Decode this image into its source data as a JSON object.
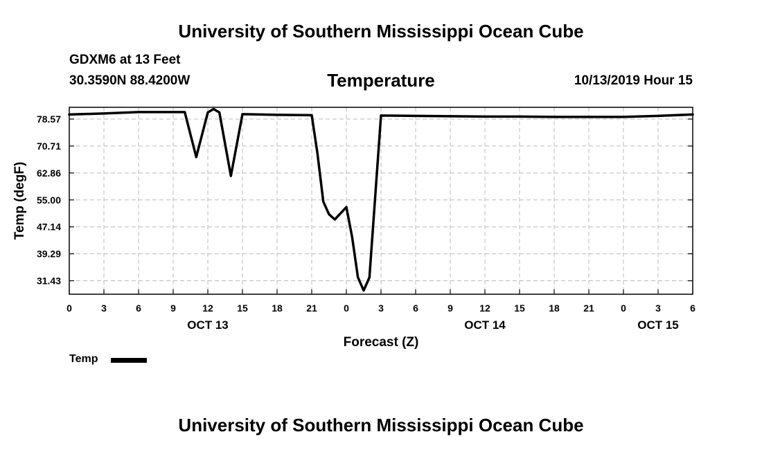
{
  "header": {
    "title_top": "University of Southern Mississippi Ocean Cube",
    "title_bottom": "University of Southern Mississippi Ocean Cube",
    "station": "GDXM6 at 13 Feet",
    "coords": "30.3590N 88.4200W",
    "chart_title": "Temperature",
    "datestamp": "10/13/2019 Hour 15"
  },
  "legend": {
    "label": "Temp"
  },
  "colors": {
    "line": "#000000",
    "grid": "#bbbbbb"
  },
  "chart_data": {
    "type": "line",
    "title": "Temperature",
    "xlabel": "Forecast (Z)",
    "ylabel": "Temp (degF)",
    "grid": true,
    "legend_position": "bottom-left",
    "xlim": [
      0,
      54
    ],
    "ylim": [
      27.5,
      82
    ],
    "x_ticks": [
      {
        "x": 0,
        "label": "0"
      },
      {
        "x": 3,
        "label": "3"
      },
      {
        "x": 6,
        "label": "6"
      },
      {
        "x": 9,
        "label": "9"
      },
      {
        "x": 12,
        "label": "12"
      },
      {
        "x": 15,
        "label": "15"
      },
      {
        "x": 18,
        "label": "18"
      },
      {
        "x": 21,
        "label": "21"
      },
      {
        "x": 24,
        "label": "0"
      },
      {
        "x": 27,
        "label": "3"
      },
      {
        "x": 30,
        "label": "6"
      },
      {
        "x": 33,
        "label": "9"
      },
      {
        "x": 36,
        "label": "12"
      },
      {
        "x": 39,
        "label": "15"
      },
      {
        "x": 42,
        "label": "18"
      },
      {
        "x": 45,
        "label": "21"
      },
      {
        "x": 48,
        "label": "0"
      },
      {
        "x": 51,
        "label": "3"
      },
      {
        "x": 54,
        "label": "6"
      }
    ],
    "day_labels": [
      {
        "x": 12,
        "label": "OCT 13"
      },
      {
        "x": 36,
        "label": "OCT 14"
      },
      {
        "x": 51,
        "label": "OCT 15"
      }
    ],
    "y_ticks": [
      {
        "y": 31.43,
        "label": "31.43"
      },
      {
        "y": 39.29,
        "label": "39.29"
      },
      {
        "y": 47.14,
        "label": "47.14"
      },
      {
        "y": 55.0,
        "label": "55.00"
      },
      {
        "y": 62.86,
        "label": "62.86"
      },
      {
        "y": 70.71,
        "label": "70.71"
      },
      {
        "y": 78.57,
        "label": "78.57"
      }
    ],
    "series": [
      {
        "name": "Temp",
        "x": [
          0,
          3,
          6,
          9,
          10,
          11,
          12,
          12.5,
          13,
          14,
          15,
          18,
          21,
          21.5,
          22,
          22.5,
          23,
          24,
          24.5,
          25,
          25.5,
          26,
          27,
          30,
          33,
          36,
          39,
          42,
          45,
          48,
          51,
          54
        ],
        "y": [
          79.9,
          80.2,
          80.6,
          80.6,
          80.6,
          67.5,
          80.5,
          81.5,
          80.5,
          62.0,
          80.0,
          79.8,
          79.7,
          68.5,
          54.5,
          50.8,
          49.3,
          52.9,
          44.2,
          32.4,
          28.6,
          32.4,
          79.6,
          79.5,
          79.4,
          79.3,
          79.3,
          79.2,
          79.2,
          79.2,
          79.5,
          79.9
        ]
      }
    ]
  }
}
